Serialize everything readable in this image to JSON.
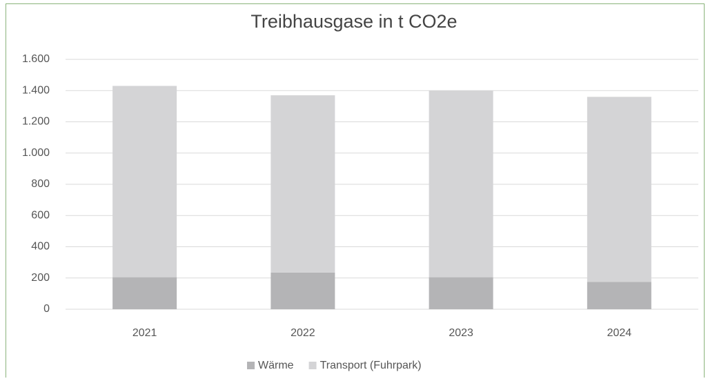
{
  "chart_data": {
    "type": "bar",
    "stacked": true,
    "title": "Treibhausgase in t CO2e",
    "categories": [
      "2021",
      "2022",
      "2023",
      "2024"
    ],
    "series": [
      {
        "name": "Wärme",
        "color": "#b4b4b6",
        "values": [
          205,
          235,
          205,
          175
        ]
      },
      {
        "name": "Transport (Fuhrpark)",
        "color": "#d4d4d6",
        "values": [
          1225,
          1135,
          1195,
          1185
        ]
      }
    ],
    "ylim": [
      0,
      1600
    ],
    "yticks": [
      0,
      200,
      400,
      600,
      800,
      {
        "value": 1000,
        "label": "1.000"
      },
      {
        "value": 1200,
        "label": "1.200"
      },
      {
        "value": 1400,
        "label": "1.400"
      },
      {
        "value": 1600,
        "label": "1.600"
      }
    ],
    "grid": true,
    "legend": "bottom"
  }
}
